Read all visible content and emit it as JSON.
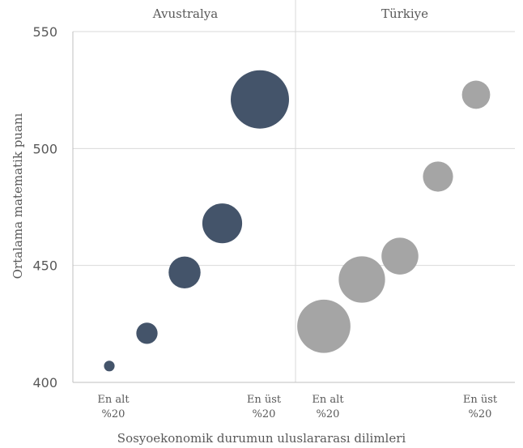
{
  "chart_data": {
    "type": "scatter",
    "subtype": "bubble",
    "ylabel": "Ortalama matematik puanı",
    "xlabel": "Sosyoekonomik durumun uluslararası dilimleri",
    "ylim": [
      400,
      550
    ],
    "yticks": [
      400,
      450,
      500,
      550
    ],
    "grid": true,
    "panels": [
      {
        "name": "Avustralya",
        "color": "#44546a",
        "x_start_label": [
          "En alt",
          "%20"
        ],
        "x_end_label": [
          "En üst",
          "%20"
        ],
        "points": [
          {
            "group": 1,
            "y": 407,
            "size": 1
          },
          {
            "group": 2,
            "y": 421,
            "size": 4
          },
          {
            "group": 3,
            "y": 447,
            "size": 9
          },
          {
            "group": 4,
            "y": 468,
            "size": 14
          },
          {
            "group": 5,
            "y": 521,
            "size": 30
          }
        ]
      },
      {
        "name": "Türkiye",
        "color": "#a5a5a5",
        "x_start_label": [
          "En alt",
          "%20"
        ],
        "x_end_label": [
          "En üst",
          "%20"
        ],
        "points": [
          {
            "group": 1,
            "y": 424,
            "size": 25
          },
          {
            "group": 2,
            "y": 444,
            "size": 19
          },
          {
            "group": 3,
            "y": 454,
            "size": 12
          },
          {
            "group": 4,
            "y": 488,
            "size": 8
          },
          {
            "group": 5,
            "y": 523,
            "size": 7
          }
        ]
      }
    ]
  }
}
